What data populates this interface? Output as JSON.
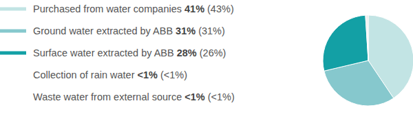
{
  "chart_data": {
    "type": "pie",
    "categories": [
      "Purchased from water companies",
      "Ground water extracted by ABB",
      "Surface water extracted by ABB",
      "Collection of rain water",
      "Waste water from external source"
    ],
    "values": [
      41,
      31,
      28,
      0.5,
      0.5
    ],
    "value_labels": [
      "41%",
      "31%",
      "28%",
      "<1%",
      "<1%"
    ],
    "previous_values": [
      43,
      31,
      26,
      0.5,
      0.5
    ],
    "previous_value_labels": [
      "(43%)",
      "(31%)",
      "(26%)",
      "(<1%)",
      "(<1%)"
    ],
    "colors": [
      "#c2e4e4",
      "#86c8cd",
      "#13a0a5",
      null,
      null
    ],
    "legend": "left"
  }
}
